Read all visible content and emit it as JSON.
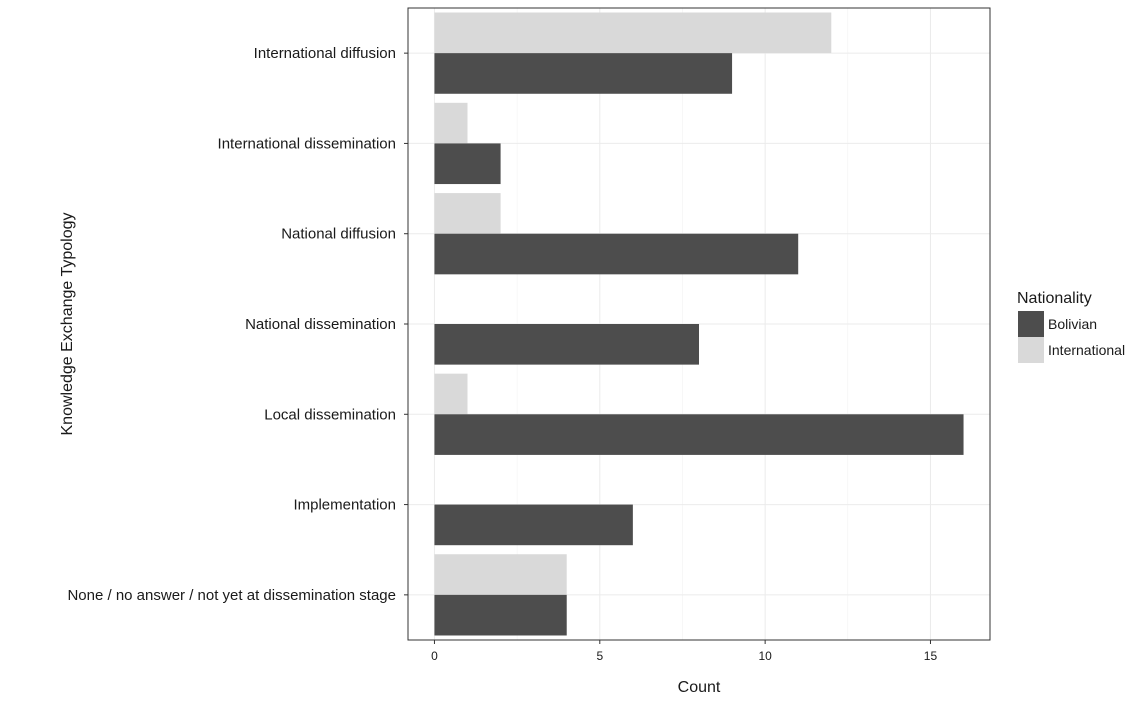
{
  "chart_data": {
    "type": "bar",
    "orientation": "horizontal",
    "categories": [
      "International diffusion",
      "International dissemination",
      "National diffusion",
      "National dissemination",
      "Local dissemination",
      "Implementation",
      "None / no answer / not yet at dissemination stage"
    ],
    "series": [
      {
        "name": "International",
        "color": "#d9d9d9",
        "values": [
          12,
          1,
          2,
          0,
          1,
          0,
          4
        ]
      },
      {
        "name": "Bolivian",
        "color": "#4d4d4d",
        "values": [
          9,
          2,
          11,
          8,
          16,
          6,
          4
        ]
      }
    ],
    "xlabel": "Count",
    "ylabel": "Knowledge Exchange Typology",
    "xlim": [
      -0.8,
      16.8
    ],
    "xticks": [
      0,
      5,
      10,
      15
    ],
    "grid": true,
    "legend": {
      "title": "Nationality",
      "position": "right",
      "items": [
        "Bolivian",
        "International"
      ]
    }
  }
}
